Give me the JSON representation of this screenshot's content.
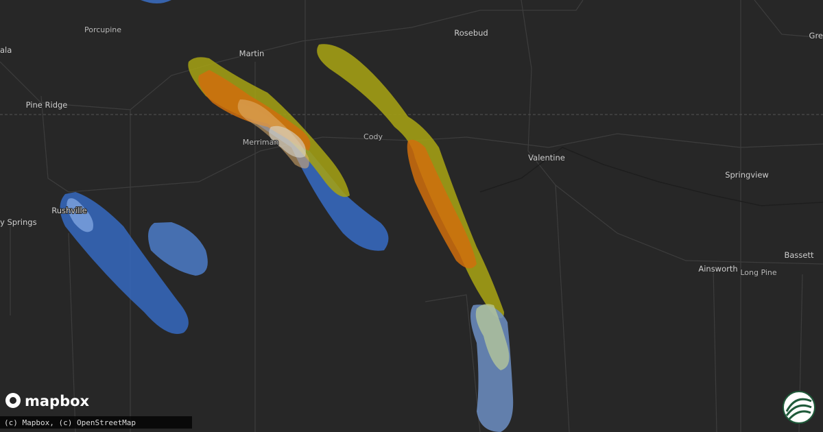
{
  "places": [
    {
      "label": "Porcupine"
    },
    {
      "label": "Martin"
    },
    {
      "label": "Rosebud"
    },
    {
      "label": "ala"
    },
    {
      "label": "Pine Ridge"
    },
    {
      "label": "Cody"
    },
    {
      "label": "Merriman"
    },
    {
      "label": "Valentine"
    },
    {
      "label": "Springview"
    },
    {
      "label": "Rushville"
    },
    {
      "label": "y Springs"
    },
    {
      "label": "Ainsworth"
    },
    {
      "label": "Long Pine"
    },
    {
      "label": "Bassett"
    },
    {
      "label": "Gre"
    }
  ],
  "logo": {
    "text": "mapbox"
  },
  "attribution": "(c) Mapbox, (c) OpenStreetMap"
}
